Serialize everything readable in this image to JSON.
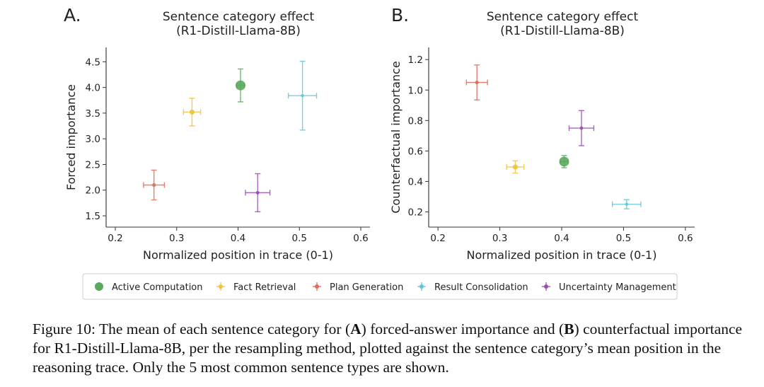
{
  "chart_data": [
    {
      "type": "scatter",
      "panel_label": "A.",
      "title": "Sentence category effect",
      "subtitle": "(R1-Distill-Llama-8B)",
      "xlabel": "Normalized position in trace (0-1)",
      "ylabel": "Forced importance",
      "xlim": [
        0.185,
        0.615
      ],
      "ylim": [
        1.28,
        4.78
      ],
      "xticks": [
        0.2,
        0.3,
        0.4,
        0.5,
        0.6
      ],
      "xtick_labels": [
        "0.2",
        "0.3",
        "0.4",
        "0.5",
        "0.6"
      ],
      "yticks": [
        1.5,
        2.0,
        2.5,
        3.0,
        3.5,
        4.0,
        4.5
      ],
      "ytick_labels": [
        "1.5",
        "2.0",
        "2.5",
        "3.0",
        "3.5",
        "4.0",
        "4.5"
      ],
      "grid": false,
      "series": [
        {
          "name": "Active Computation",
          "x": 0.404,
          "y": 4.04,
          "xerr": 0.006,
          "yerr": 0.32,
          "color": "#5aaa5e",
          "size": 7
        },
        {
          "name": "Fact Retrieval",
          "x": 0.325,
          "y": 3.52,
          "xerr": 0.014,
          "yerr": 0.27,
          "color": "#f0c23d",
          "size": 3.6
        },
        {
          "name": "Plan Generation",
          "x": 0.263,
          "y": 2.1,
          "xerr": 0.017,
          "yerr": 0.29,
          "color": "#e06c5a",
          "size": 2.6
        },
        {
          "name": "Result Consolidation",
          "x": 0.505,
          "y": 3.84,
          "xerr": 0.023,
          "yerr": 0.67,
          "color": "#62c6da",
          "size": 2.2
        },
        {
          "name": "Uncertainty Management",
          "x": 0.432,
          "y": 1.95,
          "xerr": 0.02,
          "yerr": 0.37,
          "color": "#9a4db0",
          "size": 2.4
        }
      ]
    },
    {
      "type": "scatter",
      "panel_label": "B.",
      "title": "Sentence category effect",
      "subtitle": "(R1-Distill-Llama-8B)",
      "xlabel": "Normalized position in trace (0-1)",
      "ylabel": "Counterfactual importance",
      "xlim": [
        0.185,
        0.615
      ],
      "ylim": [
        0.1,
        1.28
      ],
      "xticks": [
        0.2,
        0.3,
        0.4,
        0.5,
        0.6
      ],
      "xtick_labels": [
        "0.2",
        "0.3",
        "0.4",
        "0.5",
        "0.6"
      ],
      "yticks": [
        0.2,
        0.4,
        0.6,
        0.8,
        1.0,
        1.2
      ],
      "ytick_labels": [
        "0.2",
        "0.4",
        "0.6",
        "0.8",
        "1.0",
        "1.2"
      ],
      "grid": false,
      "series": [
        {
          "name": "Active Computation",
          "x": 0.404,
          "y": 0.53,
          "xerr": 0.006,
          "yerr": 0.04,
          "color": "#5aaa5e",
          "size": 7
        },
        {
          "name": "Fact Retrieval",
          "x": 0.325,
          "y": 0.495,
          "xerr": 0.014,
          "yerr": 0.04,
          "color": "#f0c23d",
          "size": 3.6
        },
        {
          "name": "Plan Generation",
          "x": 0.263,
          "y": 1.05,
          "xerr": 0.017,
          "yerr": 0.115,
          "color": "#e06c5a",
          "size": 2.6
        },
        {
          "name": "Result Consolidation",
          "x": 0.505,
          "y": 0.25,
          "xerr": 0.023,
          "yerr": 0.03,
          "color": "#62c6da",
          "size": 2.2
        },
        {
          "name": "Uncertainty Management",
          "x": 0.432,
          "y": 0.75,
          "xerr": 0.02,
          "yerr": 0.115,
          "color": "#9a4db0",
          "size": 2.4
        }
      ]
    }
  ],
  "legend": {
    "placement": "bottom-center",
    "entries": [
      {
        "name": "Active Computation",
        "color": "#5aaa5e"
      },
      {
        "name": "Fact Retrieval",
        "color": "#f0c23d"
      },
      {
        "name": "Plan Generation",
        "color": "#e06c5a"
      },
      {
        "name": "Result Consolidation",
        "color": "#62c6da"
      },
      {
        "name": "Uncertainty Management",
        "color": "#9a4db0"
      }
    ]
  },
  "caption": {
    "prefix": "Figure 10: The mean of each sentence category for (",
    "a": "A",
    "mid": ") forced-answer importance and (",
    "b": "B",
    "rest": ") counterfactual importance for R1-Distill-Llama-8B, per the resampling method, plotted against the sentence category’s mean position in the reasoning trace. Only the 5 most common sentence types are shown."
  }
}
